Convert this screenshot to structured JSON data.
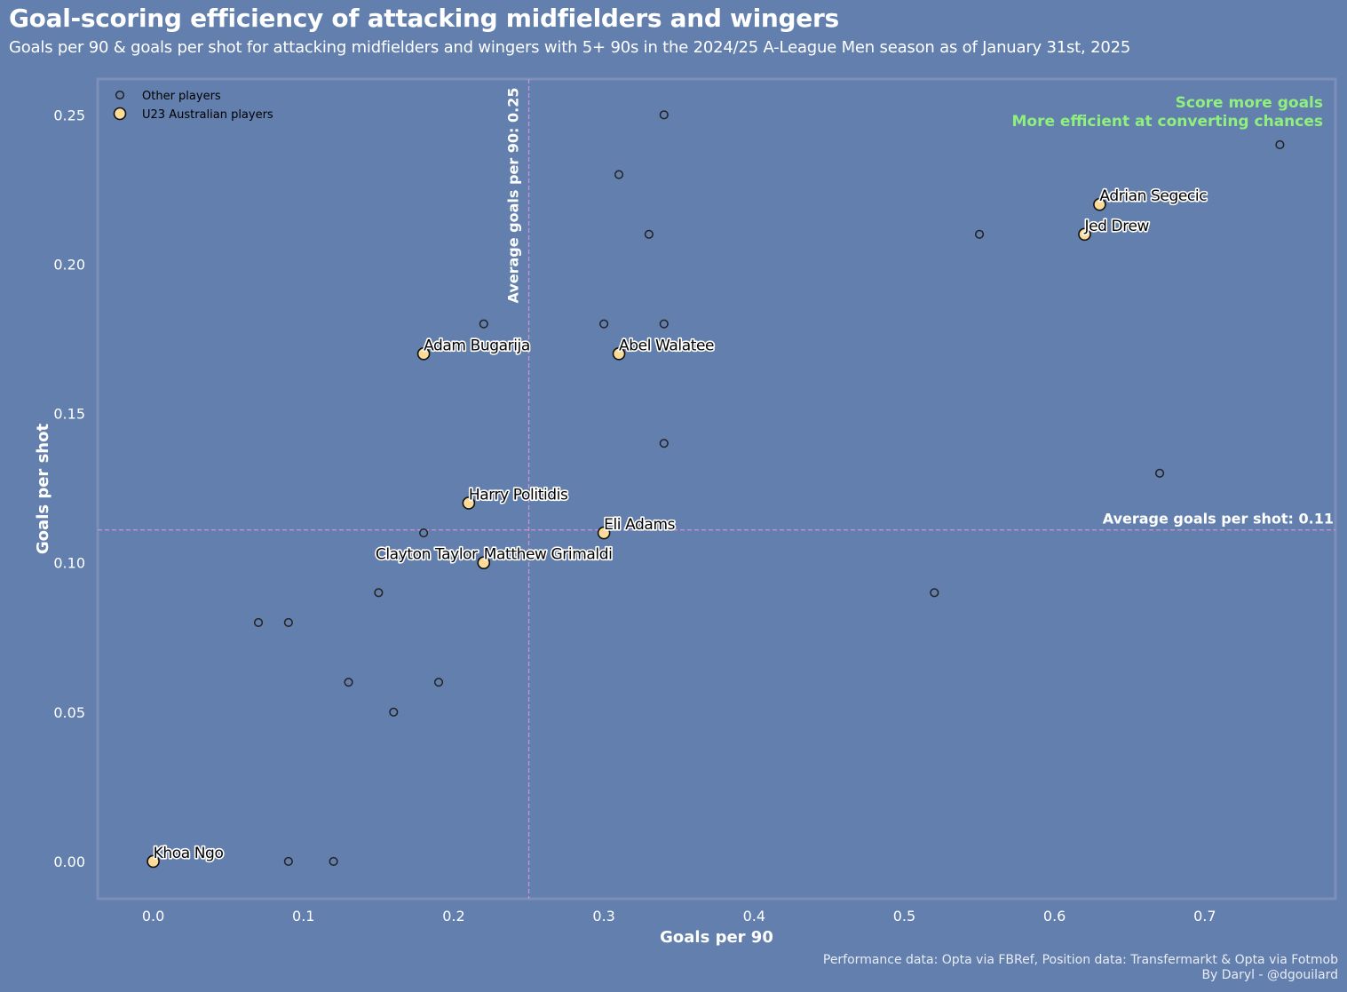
{
  "page": {
    "title": "Goal-scoring efficiency of attacking midfielders and wingers",
    "subtitle": "Goals per 90 & goals per shot for attacking midfielders and wingers with 5+ 90s in the 2024/25 A-League Men season as of January 31st, 2025",
    "caption_line1": "Performance data: Opta via FBRef, Position data: Transfermarkt & Opta via Fotmob",
    "caption_line2": "By Daryl - @dgouilard"
  },
  "colors": {
    "background": "#627fad",
    "highlight_fill": "#fddc9a",
    "average_line": "#d58fd0",
    "quadrant_text": "#8ff07e",
    "border": "#7c8fb8"
  },
  "chart_data": {
    "type": "scatter",
    "title": "Goal-scoring efficiency of attacking midfielders and wingers",
    "xlabel": "Goals per 90",
    "ylabel": "Goals per shot",
    "xlim": [
      -0.037,
      0.787
    ],
    "ylim": [
      -0.0125,
      0.262
    ],
    "xticks": [
      "0.0",
      "0.1",
      "0.2",
      "0.3",
      "0.4",
      "0.5",
      "0.6",
      "0.7"
    ],
    "yticks": [
      "0.00",
      "0.05",
      "0.10",
      "0.15",
      "0.20",
      "0.25"
    ],
    "grid": false,
    "legend_position": "top-left",
    "legend": [
      "Other players",
      "U23 Australian players"
    ],
    "averages": {
      "x": 0.25,
      "y": 0.111,
      "x_label": "Average goals per 90: 0.25",
      "y_label": "Average goals per shot: 0.11"
    },
    "quadrant_label": [
      "Score more goals",
      "More efficient at converting chances"
    ],
    "series": [
      {
        "name": "Other players",
        "points": [
          {
            "x": 0.34,
            "y": 0.25
          },
          {
            "x": 0.75,
            "y": 0.24
          },
          {
            "x": 0.31,
            "y": 0.23
          },
          {
            "x": 0.33,
            "y": 0.21
          },
          {
            "x": 0.55,
            "y": 0.21
          },
          {
            "x": 0.22,
            "y": 0.18
          },
          {
            "x": 0.3,
            "y": 0.18
          },
          {
            "x": 0.34,
            "y": 0.18
          },
          {
            "x": 0.34,
            "y": 0.14
          },
          {
            "x": 0.67,
            "y": 0.13
          },
          {
            "x": 0.18,
            "y": 0.11
          },
          {
            "x": 0.22,
            "y": 0.1
          },
          {
            "x": 0.15,
            "y": 0.09
          },
          {
            "x": 0.52,
            "y": 0.09
          },
          {
            "x": 0.07,
            "y": 0.08
          },
          {
            "x": 0.09,
            "y": 0.08
          },
          {
            "x": 0.13,
            "y": 0.06
          },
          {
            "x": 0.19,
            "y": 0.06
          },
          {
            "x": 0.16,
            "y": 0.05
          },
          {
            "x": 0.09,
            "y": 0.0
          },
          {
            "x": 0.12,
            "y": 0.0
          }
        ]
      },
      {
        "name": "U23 Australian players",
        "points": [
          {
            "label": "Adrian Segecic",
            "x": 0.63,
            "y": 0.22,
            "anchor": "start"
          },
          {
            "label": "Jed Drew",
            "x": 0.62,
            "y": 0.21,
            "anchor": "start"
          },
          {
            "label": "Adam Bugarija",
            "x": 0.18,
            "y": 0.17,
            "anchor": "start"
          },
          {
            "label": "Abel Walatee",
            "x": 0.31,
            "y": 0.17,
            "anchor": "start"
          },
          {
            "label": "Harry Politidis",
            "x": 0.21,
            "y": 0.12,
            "anchor": "start"
          },
          {
            "label": "Eli Adams",
            "x": 0.3,
            "y": 0.11,
            "anchor": "start"
          },
          {
            "label": "Clayton Taylor",
            "x": 0.22,
            "y": 0.1,
            "anchor": "end"
          },
          {
            "label": "Matthew Grimaldi",
            "x": 0.22,
            "y": 0.1,
            "anchor": "start"
          },
          {
            "label": "Khoa Ngo",
            "x": 0.0,
            "y": 0.0,
            "anchor": "start"
          }
        ]
      }
    ]
  }
}
